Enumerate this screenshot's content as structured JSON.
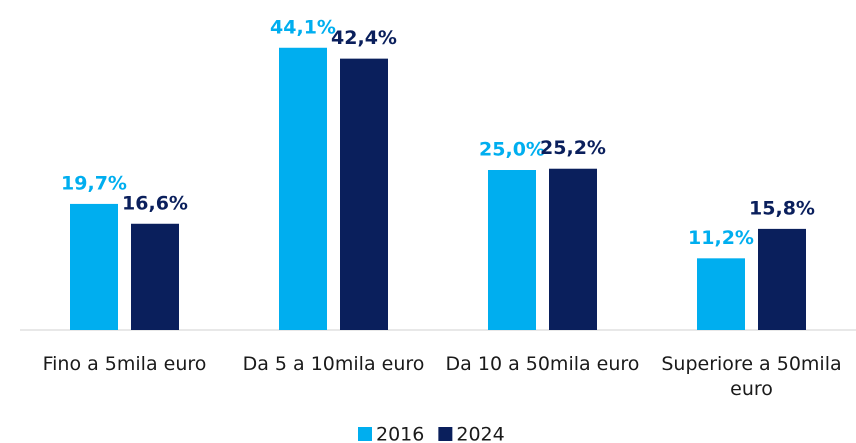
{
  "chart_data": {
    "type": "bar",
    "categories": [
      "Fino a 5mila euro",
      "Da 5 a 10mila euro",
      "Da 10 a 50mila euro",
      "Superiore a 50mila euro"
    ],
    "series": [
      {
        "name": "2016",
        "color": "#00aeef",
        "values": [
          19.7,
          44.1,
          25.0,
          11.2
        ],
        "value_labels": [
          "19,7%",
          "44,1%",
          "25,0%",
          "11,2%"
        ]
      },
      {
        "name": "2024",
        "color": "#0a1f5c",
        "values": [
          16.6,
          42.4,
          25.2,
          15.8
        ],
        "value_labels": [
          "16,6%",
          "42,4%",
          "25,2%",
          "15,8%"
        ]
      }
    ],
    "legend": "bottom"
  }
}
